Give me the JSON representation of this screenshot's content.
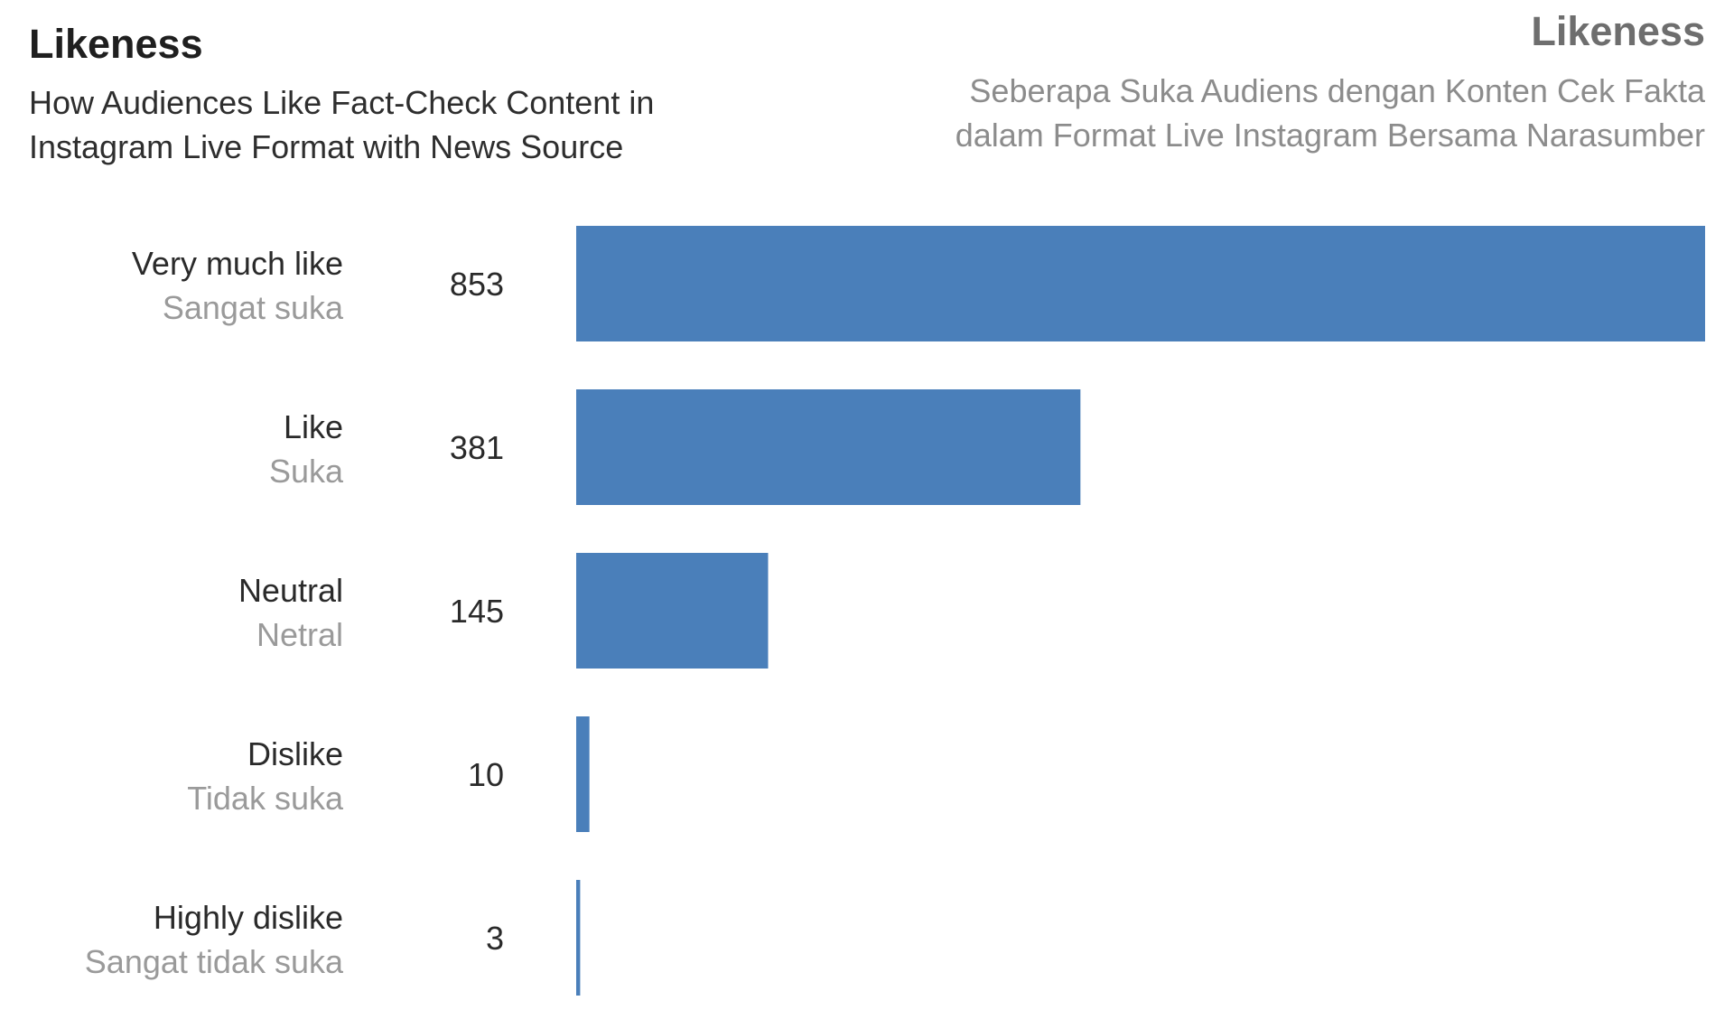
{
  "header": {
    "title_en": "Likeness",
    "subtitle_en": [
      "How Audiences Like Fact-Check Content in",
      "Instagram Live Format with News Source"
    ],
    "title_id": "Likeness",
    "subtitle_id": [
      "Seberapa Suka Audiens dengan Konten Cek Fakta",
      "dalam Format Live Instagram Bersama Narasumber"
    ]
  },
  "colors": {
    "bar": "#4a7fba"
  },
  "chart_data": {
    "type": "bar",
    "orientation": "horizontal",
    "categories": [
      "Very much like",
      "Like",
      "Neutral",
      "Dislike",
      "Highly dislike"
    ],
    "categories_secondary": [
      "Sangat suka",
      "Suka",
      "Netral",
      "Tidak suka",
      "Sangat tidak suka"
    ],
    "values": [
      853,
      381,
      145,
      10,
      3
    ],
    "xlim": [
      0,
      853
    ],
    "grid": false,
    "data_labels": true
  }
}
